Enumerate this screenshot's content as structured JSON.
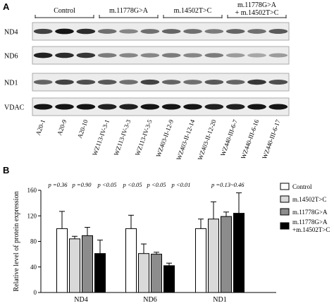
{
  "panels": {
    "a": "A",
    "b": "B"
  },
  "blot": {
    "groups": [
      {
        "label": "Control",
        "lanes": [
          "A20-1",
          "A20-9",
          "A20-10"
        ]
      },
      {
        "label": "m.11778G>A",
        "lanes": [
          "WZ113-IV-3-1",
          "WZ113-IV-3-3",
          "WZ113-IV-3-5"
        ]
      },
      {
        "label": "m.14502T>C",
        "lanes": [
          "WZ403-II-12-9",
          "WZ403-II-12-14",
          "WZ403-II-12-20"
        ]
      },
      {
        "label_line1": "m.11778G>A",
        "label_line2": "+ m.14502T>C",
        "lanes": [
          "WZ440-III-6-7",
          "WZ440-III-6-16",
          "WZ440-III-6-17"
        ]
      }
    ],
    "rows": [
      {
        "label": "ND4",
        "intensity": [
          0.75,
          0.95,
          0.85,
          0.55,
          0.45,
          0.55,
          0.6,
          0.55,
          0.5,
          0.6,
          0.55,
          0.65
        ]
      },
      {
        "label": "ND6",
        "intensity": [
          0.9,
          0.85,
          0.8,
          0.5,
          0.45,
          0.45,
          0.5,
          0.45,
          0.5,
          0.35,
          0.3,
          0.35
        ]
      },
      {
        "label": "ND1",
        "intensity": [
          0.6,
          0.75,
          0.7,
          0.65,
          0.55,
          0.75,
          0.6,
          0.55,
          0.65,
          0.6,
          0.8,
          0.7
        ]
      },
      {
        "label": "VDAC",
        "intensity": [
          0.95,
          0.95,
          0.95,
          0.9,
          0.9,
          0.95,
          0.95,
          0.95,
          0.9,
          0.9,
          0.95,
          0.95
        ]
      }
    ]
  },
  "chart_data": {
    "type": "bar",
    "ylabel": "Relative level of protein expression",
    "ylim": [
      0,
      160
    ],
    "yticks": [
      0,
      40,
      80,
      120,
      160
    ],
    "categories": [
      "ND4",
      "ND6",
      "ND1"
    ],
    "series": [
      {
        "name": "Control",
        "color": "#ffffff",
        "values": [
          100,
          100,
          100
        ],
        "errors": [
          27,
          21,
          15
        ]
      },
      {
        "name": "m.14502T>C",
        "color": "#d9d9d9",
        "values": [
          84,
          61,
          115
        ],
        "errors": [
          4,
          15,
          27
        ]
      },
      {
        "name": "m.11778G>A",
        "color": "#8c8c8c",
        "values": [
          89,
          60,
          119
        ],
        "errors": [
          13,
          3,
          7
        ]
      },
      {
        "name_line1": "m.11778G>A",
        "name_line2": "+m.14502T>C",
        "color": "#000000",
        "values": [
          61,
          42,
          124
        ],
        "errors": [
          21,
          4,
          32
        ]
      }
    ],
    "legend_position": "top-right",
    "annotations": [
      [
        "p =0.36",
        "p =0.90",
        "p <0.05"
      ],
      [
        "p <0.05",
        "p <0.05",
        "p <0.01"
      ],
      [
        "p =0.13~0.46"
      ]
    ]
  }
}
